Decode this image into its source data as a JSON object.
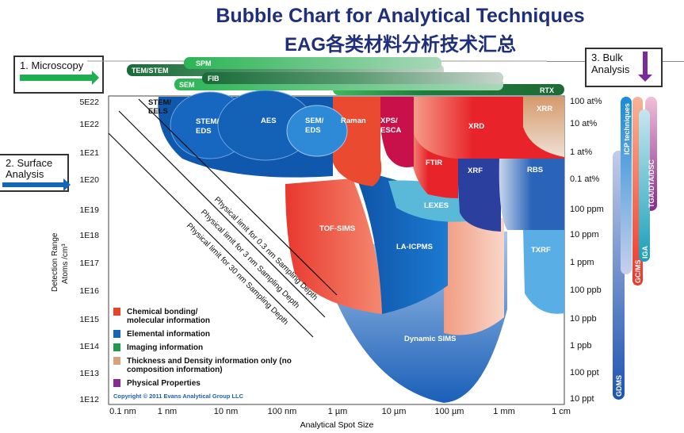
{
  "title": {
    "line1": "Bubble Chart for Analytical Techniques",
    "line2": "EAG各类材料分析技术汇总"
  },
  "callouts": {
    "microscopy": "1. Microscopy",
    "surface": "2. Surface Analysis",
    "bulk": "3. Bulk Analysis"
  },
  "colors": {
    "chemical": "#e8442c",
    "elemental": "#1466b8",
    "imaging": "#1f9a4e",
    "thickness": "#d9a27a",
    "physical": "#8a2a8e",
    "title": "#1f2f7a"
  },
  "microscopy_bars": [
    "SPM",
    "TEM/STEM",
    "FIB",
    "SEM",
    "RTX"
  ],
  "y_axis": {
    "label_line1": "Detection Range",
    "label_line2": "Atoms /cm³",
    "ticks": [
      "5E22",
      "1E22",
      "1E21",
      "1E20",
      "1E19",
      "1E18",
      "1E17",
      "1E16",
      "1E15",
      "1E14",
      "1E13",
      "1E12"
    ]
  },
  "y_axis_right": {
    "ticks": [
      "100 at%",
      "10 at%",
      "1 at%",
      "0.1 at%",
      "100 ppm",
      "10 ppm",
      "1 ppm",
      "100 ppb",
      "10 ppb",
      "1 ppb",
      "100 ppt",
      "10 ppt"
    ]
  },
  "x_axis": {
    "label": "Analytical Spot Size",
    "ticks": [
      "0.1 nm",
      "1 nm",
      "10 nm",
      "100 nm",
      "1 µm",
      "10 µm",
      "100 µm",
      "1 mm",
      "1 cm"
    ]
  },
  "techniques": {
    "stem_eels": [
      "STEM/",
      "EELS"
    ],
    "stem_eds": [
      "STEM/",
      "EDS"
    ],
    "aes": "AES",
    "sem_eds": [
      "SEM/",
      "EDS"
    ],
    "raman": "Raman",
    "xps": [
      "XPS/",
      "ESCA"
    ],
    "xrd": "XRD",
    "xrr": "XRR",
    "ftir": "FTIR",
    "xrf": "XRF",
    "rbs": "RBS",
    "lexes": "LEXES",
    "tof_sims": "TOF-SIMS",
    "la_icpms": "LA-ICPMS",
    "txrf": "TXRF",
    "dynamic_sims": "Dynamic SIMS"
  },
  "bulk_techniques": [
    "GDMS",
    "ICP techniques",
    "GC/MS",
    "IGA",
    "TGA/DTA/DSC"
  ],
  "limits": [
    "Physical limit for 0.3 nm Sampling Depth",
    "Physical limit for 3 nm Sampling Depth",
    "Physical limit for 30 nm Sampling Depth"
  ],
  "legend": [
    {
      "label": "Chemical bonding/ molecular information",
      "color": "#e8442c"
    },
    {
      "label": "Elemental information",
      "color": "#1466b8"
    },
    {
      "label": "Imaging information",
      "color": "#1f9a4e"
    },
    {
      "label": "Thickness and Density information only (no composition information)",
      "color": "#d9a27a"
    },
    {
      "label": "Physical Properties",
      "color": "#8a2a8e"
    }
  ],
  "copyright": "Copyright © 2011  Evans Analytical Group LLC"
}
